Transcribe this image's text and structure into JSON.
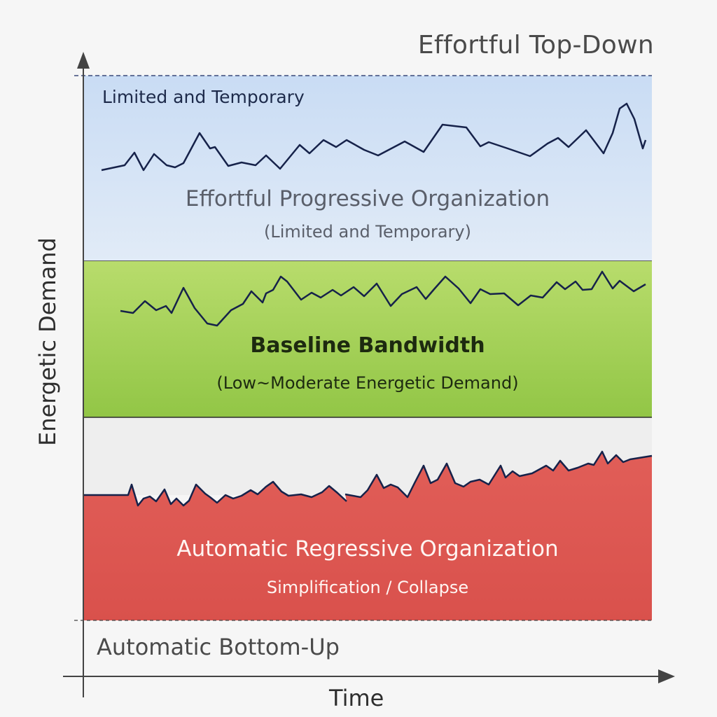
{
  "axes": {
    "y_label": "Energetic Demand",
    "x_label": "Time",
    "top_label": "Effortful Top-Down",
    "bottom_label": "Automatic Bottom-Up"
  },
  "bands": {
    "upper": {
      "corner_label": "Limited and Temporary",
      "title": "Effortful Progressive Organization",
      "subtitle": "(Limited and Temporary)",
      "color": "#d3e2f5"
    },
    "middle": {
      "title": "Baseline Bandwidth",
      "subtitle": "(Low~Moderate Energetic Demand)",
      "color": "#a8d25a"
    },
    "lower": {
      "title": "Automatic Regressive Organization",
      "subtitle": "Simplification / Collapse",
      "color": "#d95550"
    }
  },
  "colors": {
    "line": "#16224a",
    "axis": "#444444",
    "gap": "#eeeeee"
  }
}
